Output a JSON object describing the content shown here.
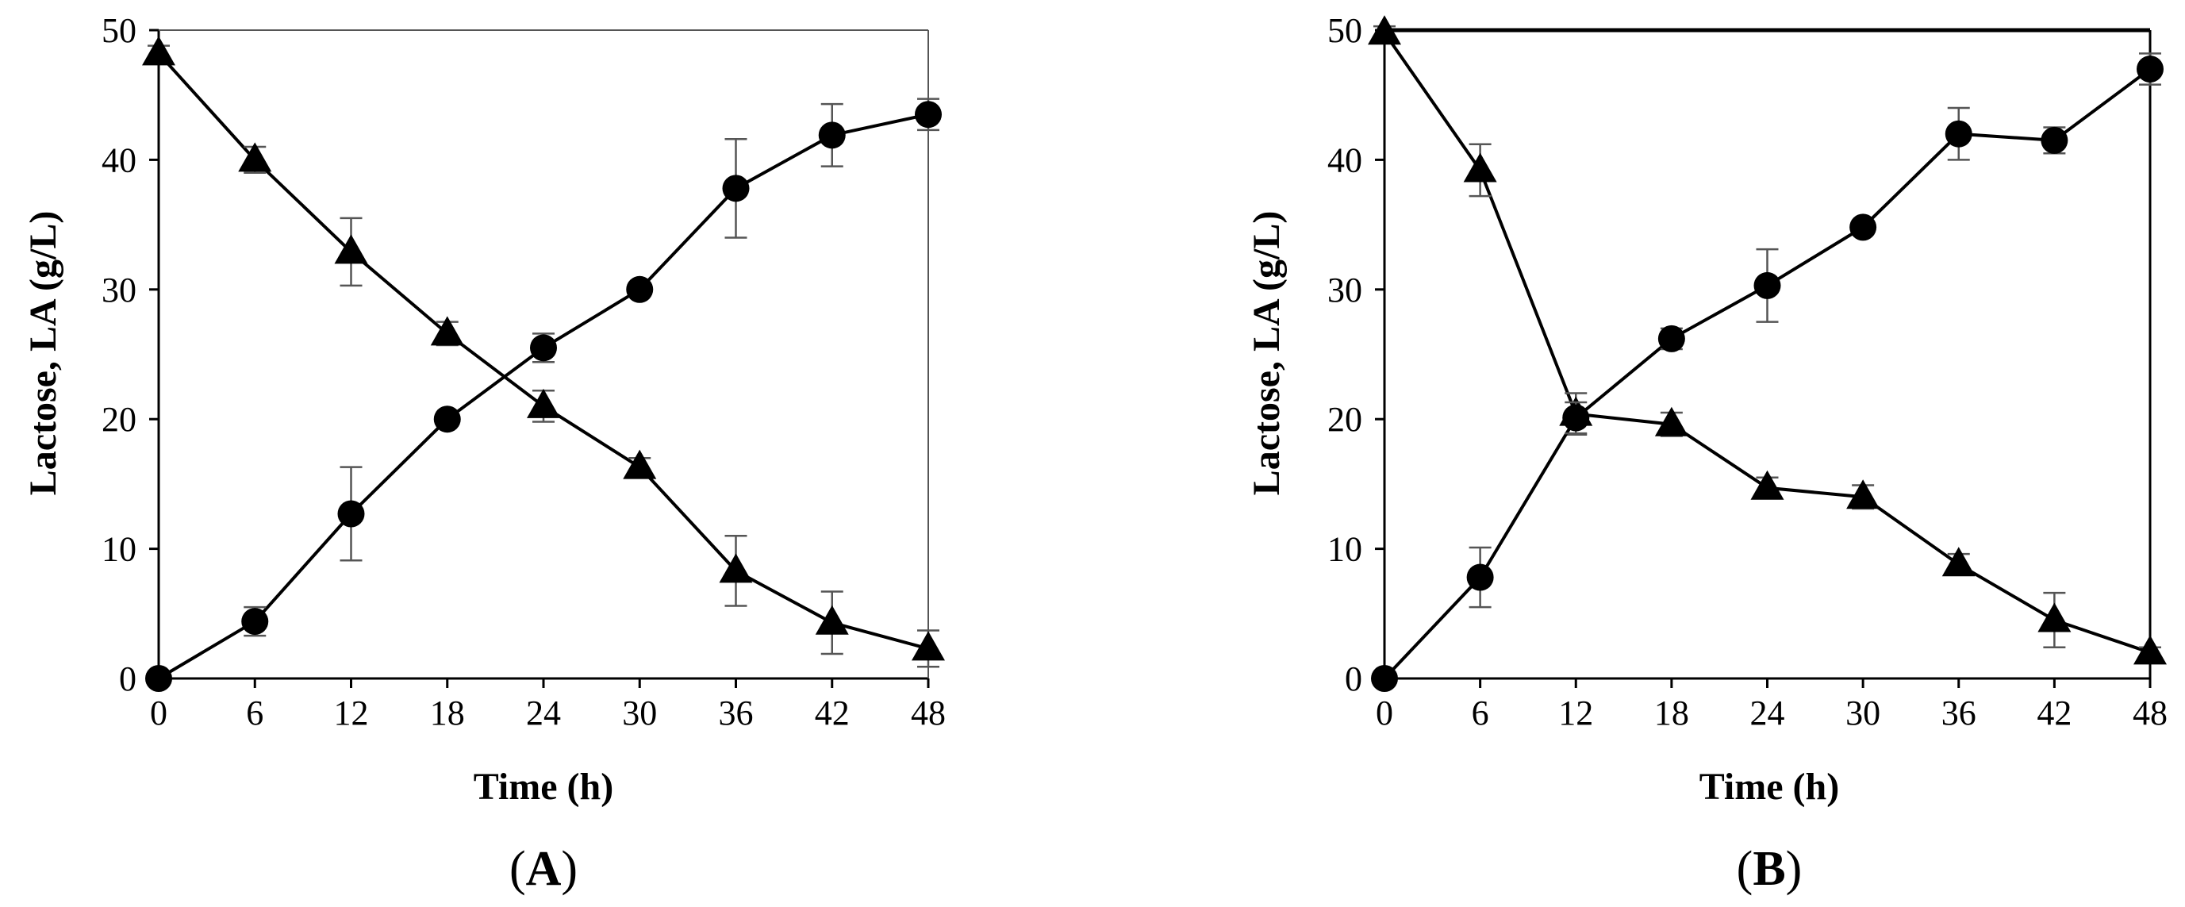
{
  "chart_data": [
    {
      "type": "line",
      "panel_label": "A",
      "xlabel": "Time (h)",
      "ylabel": "Lactose, LA (g/L)",
      "x": [
        0,
        6,
        12,
        18,
        24,
        30,
        36,
        42,
        48
      ],
      "xlim": [
        0,
        48
      ],
      "ylim": [
        0,
        50
      ],
      "xticks": [
        0,
        6,
        12,
        18,
        24,
        30,
        36,
        42,
        48
      ],
      "yticks": [
        0,
        10,
        20,
        30,
        40,
        50
      ],
      "grid": false,
      "legend": "none",
      "series": [
        {
          "marker": "triangle",
          "values": [
            48.2,
            40.0,
            32.9,
            26.6,
            21.0,
            16.3,
            8.3,
            4.3,
            2.3
          ],
          "errors": [
            0.6,
            1.0,
            2.6,
            0.9,
            1.2,
            0.7,
            2.7,
            2.4,
            1.4
          ]
        },
        {
          "marker": "circle",
          "values": [
            0,
            4.4,
            12.7,
            20.0,
            25.5,
            30.0,
            37.8,
            41.9,
            43.5
          ],
          "errors": [
            0,
            1.1,
            3.6,
            0.4,
            1.1,
            0.5,
            3.8,
            2.4,
            1.2
          ]
        }
      ]
    },
    {
      "type": "line",
      "panel_label": "B",
      "xlabel": "Time (h)",
      "ylabel": "Lactose, LA (g/L)",
      "x": [
        0,
        6,
        12,
        18,
        24,
        30,
        36,
        42,
        48
      ],
      "xlim": [
        0,
        48
      ],
      "ylim": [
        0,
        50
      ],
      "xticks": [
        0,
        6,
        12,
        18,
        24,
        30,
        36,
        42,
        48
      ],
      "yticks": [
        0,
        10,
        20,
        30,
        40,
        50
      ],
      "grid": false,
      "legend": "none",
      "series": [
        {
          "marker": "triangle",
          "values": [
            49.8,
            39.2,
            20.4,
            19.6,
            14.7,
            14.0,
            8.8,
            4.5,
            2.0
          ],
          "errors": [
            0.5,
            2.0,
            1.6,
            0.9,
            0.8,
            0.9,
            0.8,
            2.1,
            0.4
          ]
        },
        {
          "marker": "circle",
          "values": [
            0,
            7.8,
            20.1,
            26.2,
            30.3,
            34.8,
            42.0,
            41.5,
            47.0
          ],
          "errors": [
            0,
            2.3,
            1.2,
            0.8,
            2.8,
            0.4,
            2.0,
            1.0,
            1.2
          ]
        }
      ]
    }
  ]
}
